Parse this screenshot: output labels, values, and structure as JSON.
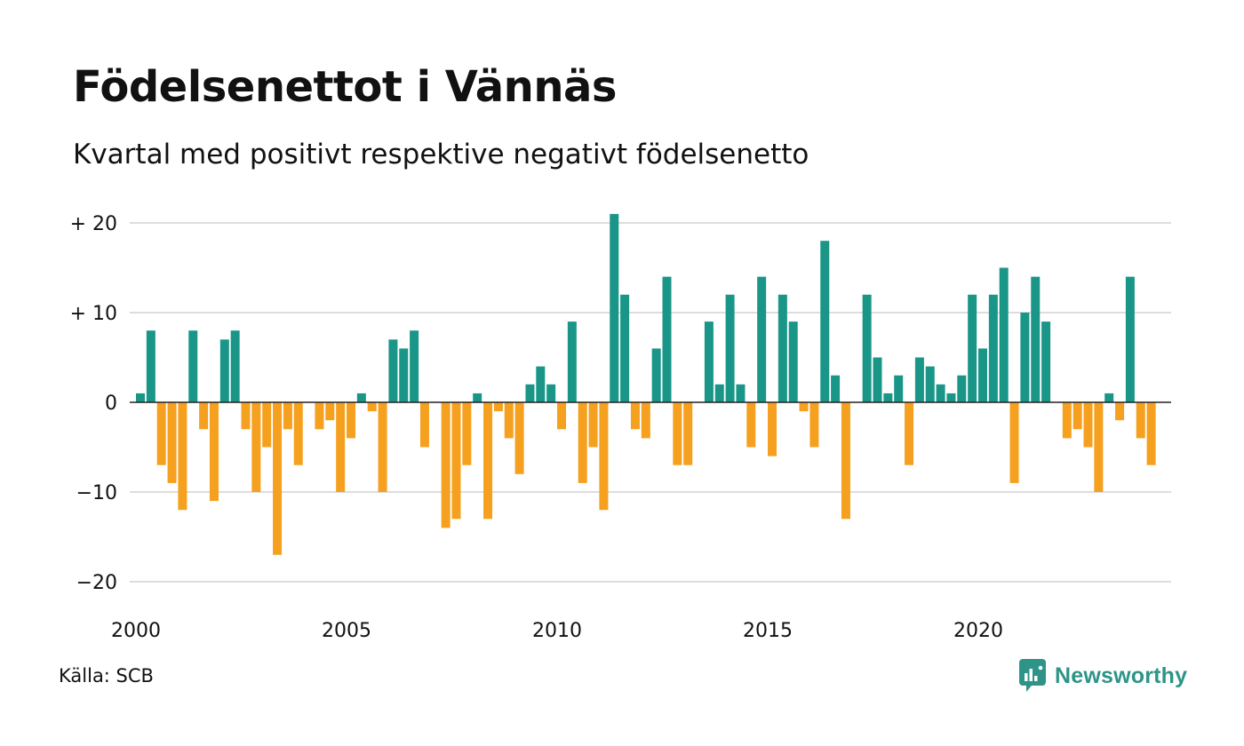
{
  "title": "Födelsenettot i Vännäs",
  "subtitle": "Kvartal med positivt respektive negativt födelsenetto",
  "source": "Källa: SCB",
  "brand": {
    "name": "Newsworthy",
    "icon": "newsworthy-logo-icon"
  },
  "colors": {
    "positive": "#1a9688",
    "negative": "#f5a01e",
    "grid": "#dddddd",
    "zero": "#222222",
    "brand": "#2e9488"
  },
  "chart_data": {
    "type": "bar",
    "title": "Födelsenettot i Vännäs",
    "subtitle": "Kvartal med positivt respektive negativt födelsenetto",
    "xlabel": "",
    "ylabel": "",
    "start_year": 2000,
    "periods_per_year": 4,
    "x_ticks": [
      "2000",
      "2005",
      "2010",
      "2015",
      "2020"
    ],
    "y_ticks": [
      {
        "value": 20,
        "label": "+ 20"
      },
      {
        "value": 10,
        "label": "+ 10"
      },
      {
        "value": 0,
        "label": "0"
      },
      {
        "value": -10,
        "label": "−10"
      },
      {
        "value": -20,
        "label": "−20"
      }
    ],
    "ylim": [
      -22,
      21.5
    ],
    "grid": true,
    "values": [
      1,
      8,
      -7,
      -9,
      -12,
      8,
      -3,
      -11,
      7,
      8,
      -3,
      -10,
      -5,
      -17,
      -3,
      -7,
      0,
      -3,
      -2,
      -10,
      -4,
      1,
      -1,
      -10,
      7,
      6,
      8,
      -5,
      0,
      -14,
      -13,
      -7,
      1,
      -13,
      -1,
      -4,
      -8,
      2,
      4,
      2,
      -3,
      9,
      -9,
      -5,
      -12,
      21,
      12,
      -3,
      -4,
      6,
      14,
      -7,
      -7,
      0,
      9,
      2,
      12,
      2,
      -5,
      14,
      -6,
      12,
      9,
      -1,
      -5,
      18,
      3,
      -13,
      0,
      12,
      5,
      1,
      3,
      -7,
      5,
      4,
      2,
      1,
      3,
      12,
      6,
      12,
      15,
      -9,
      10,
      14,
      9,
      0,
      -4,
      -3,
      -5,
      -10,
      1,
      -2,
      14,
      -4,
      -7
    ]
  }
}
